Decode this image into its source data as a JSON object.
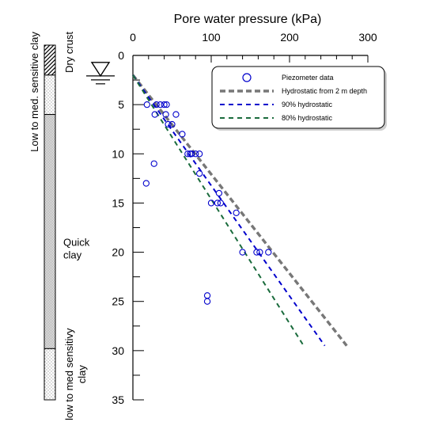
{
  "chart_data": {
    "type": "scatter",
    "title": "",
    "xlabel": "Pore water pressure (kPa)",
    "ylabel": "",
    "x_axis_position": "top",
    "y_axis_inverted": true,
    "xlim": [
      0,
      300
    ],
    "ylim": [
      0,
      35
    ],
    "x_ticks": [
      "0",
      "100",
      "200",
      "300"
    ],
    "y_ticks": [
      "0",
      "5",
      "10",
      "15",
      "20",
      "25",
      "30",
      "35"
    ],
    "grid": false,
    "legend_position": "top-right",
    "series": [
      {
        "name": "Piezometer data",
        "type": "scatter",
        "marker": "open-circle",
        "color": "#0000cc",
        "points": [
          [
            18,
            5
          ],
          [
            30,
            5
          ],
          [
            35,
            5
          ],
          [
            40,
            5
          ],
          [
            43,
            5
          ],
          [
            28,
            6
          ],
          [
            42,
            6
          ],
          [
            55,
            6
          ],
          [
            45,
            7
          ],
          [
            50,
            7
          ],
          [
            63,
            8
          ],
          [
            70,
            10
          ],
          [
            73,
            10
          ],
          [
            75,
            10
          ],
          [
            80,
            10
          ],
          [
            85,
            10
          ],
          [
            27,
            11
          ],
          [
            85,
            12
          ],
          [
            17,
            13
          ],
          [
            110,
            14
          ],
          [
            100,
            15
          ],
          [
            108,
            15
          ],
          [
            112,
            15
          ],
          [
            132,
            16
          ],
          [
            140,
            20
          ],
          [
            158,
            20
          ],
          [
            162,
            20
          ],
          [
            173,
            20
          ],
          [
            95,
            24.4
          ],
          [
            95,
            25
          ]
        ]
      },
      {
        "name": "Hydrostatic from 2 m depth",
        "type": "line",
        "dash": "dashed",
        "color": "#777777",
        "points": [
          [
            0,
            2
          ],
          [
            273,
            29.5
          ]
        ]
      },
      {
        "name": "90% hydrostatic",
        "type": "line",
        "dash": "dashed",
        "color": "#0000cc",
        "points": [
          [
            0,
            2
          ],
          [
            245,
            29.5
          ]
        ]
      },
      {
        "name": "80% hydrostatic",
        "type": "line",
        "dash": "dashed",
        "color": "#1a6b3c",
        "points": [
          [
            0,
            2
          ],
          [
            218,
            29.5
          ]
        ]
      }
    ]
  },
  "stratigraphy": {
    "left_label": "Low to med. sensitive clay",
    "layers": [
      {
        "label": "Dry crust",
        "top": 0,
        "bottom": 2,
        "pattern": "hatch"
      },
      {
        "label": "",
        "top": 2,
        "bottom": 6,
        "pattern": "dots"
      },
      {
        "label": "Quick\nclay",
        "top": 6,
        "bottom": 29.8,
        "pattern": "fine"
      },
      {
        "label": "low to med sensitivy\nclay",
        "top": 29.8,
        "bottom": 35,
        "pattern": "dots"
      }
    ],
    "groundwater_depth": 2
  }
}
